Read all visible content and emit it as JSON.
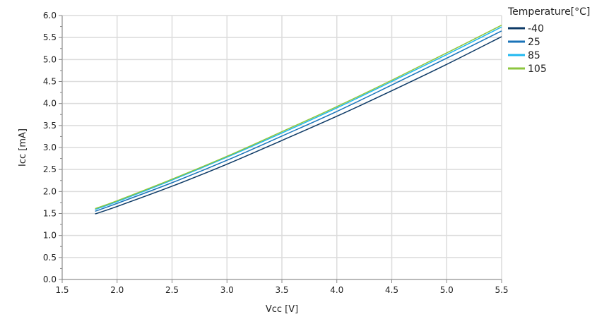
{
  "chart_data": {
    "type": "line",
    "xlabel": "Vcc [V]",
    "ylabel": "Icc [mA]",
    "xlim": [
      1.5,
      5.5
    ],
    "ylim": [
      0.0,
      6.0
    ],
    "xticks": [
      "1.5",
      "2.0",
      "2.5",
      "3.0",
      "3.5",
      "4.0",
      "4.5",
      "5.0",
      "5.5"
    ],
    "yticks": [
      "0.0",
      "0.5",
      "1.0",
      "1.5",
      "2.0",
      "2.5",
      "3.0",
      "3.5",
      "4.0",
      "4.5",
      "5.0",
      "5.5",
      "6.0"
    ],
    "grid": true,
    "legend_title": "Temperature[°C]",
    "legend_position": "top-right outside",
    "x": [
      1.8,
      2.0,
      2.5,
      3.0,
      3.5,
      4.0,
      4.5,
      5.0,
      5.5
    ],
    "series": [
      {
        "name": "-40",
        "color": "#0d3a66",
        "values": [
          1.49,
          1.66,
          2.12,
          2.62,
          3.16,
          3.71,
          4.29,
          4.89,
          5.52
        ]
      },
      {
        "name": "25",
        "color": "#1a73b8",
        "values": [
          1.55,
          1.73,
          2.2,
          2.71,
          3.26,
          3.82,
          4.42,
          5.03,
          5.65
        ]
      },
      {
        "name": "85",
        "color": "#1fb8f0",
        "values": [
          1.59,
          1.77,
          2.26,
          2.78,
          3.33,
          3.9,
          4.5,
          5.11,
          5.74
        ]
      },
      {
        "name": "105",
        "color": "#8cc63f",
        "values": [
          1.61,
          1.79,
          2.28,
          2.8,
          3.36,
          3.93,
          4.53,
          5.15,
          5.78
        ]
      }
    ]
  }
}
